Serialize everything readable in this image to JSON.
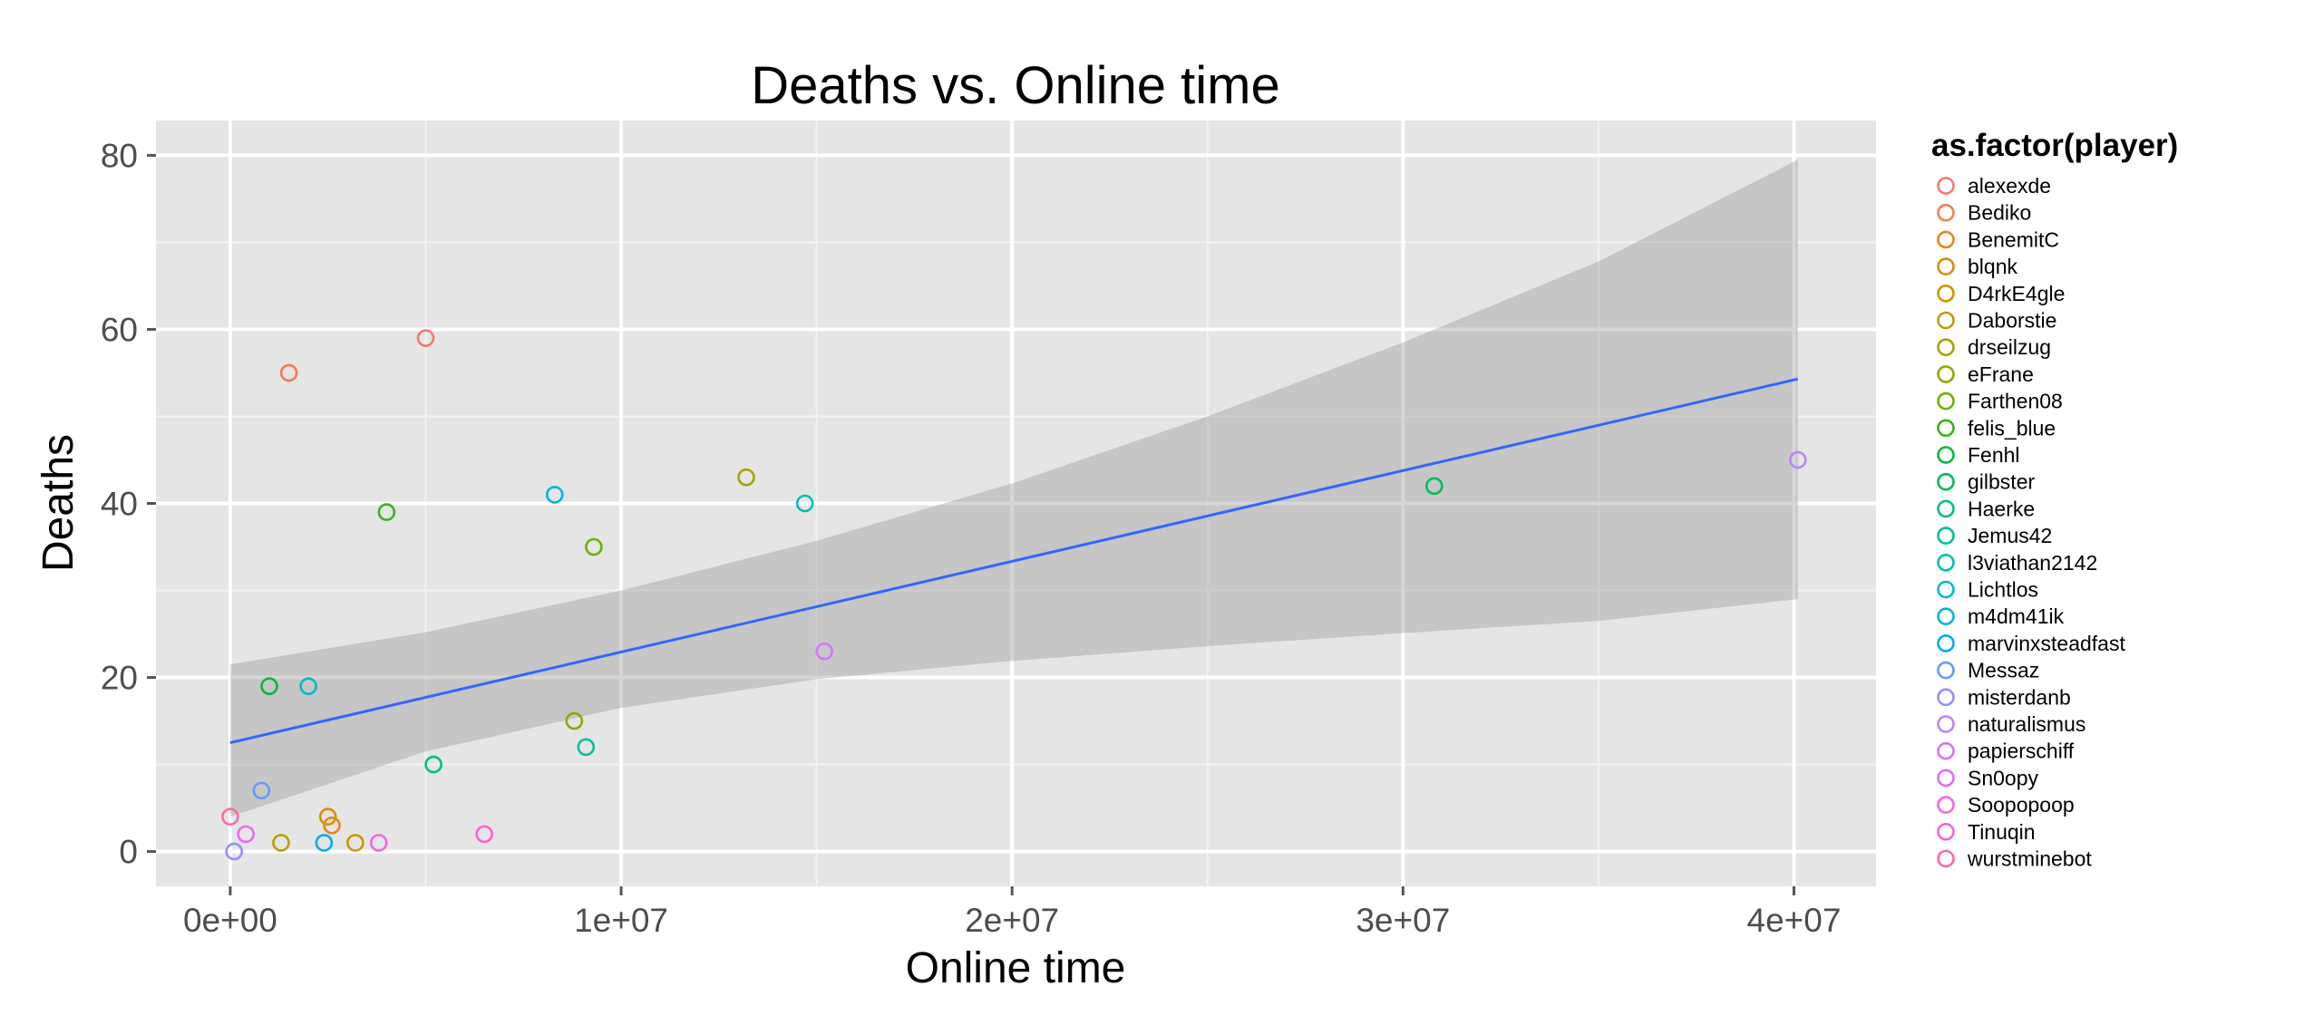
{
  "chart_data": {
    "type": "scatter",
    "title": "Deaths vs. Online time",
    "xlabel": "Online time",
    "ylabel": "Deaths",
    "xlim": [
      -1900000,
      42100000
    ],
    "ylim": [
      -4,
      84
    ],
    "x_ticks": [
      0,
      10000000,
      20000000,
      30000000,
      40000000
    ],
    "x_tick_labels": [
      "0e+00",
      "1e+07",
      "2e+07",
      "3e+07",
      "4e+07"
    ],
    "y_ticks": [
      0,
      20,
      40,
      60,
      80
    ],
    "y_tick_labels": [
      "0",
      "20",
      "40",
      "60",
      "80"
    ],
    "grid": true,
    "legend": {
      "title": "as.factor(player)",
      "position": "right"
    },
    "series": [
      {
        "name": "alexexde",
        "color": "#F8766D",
        "points": [
          [
            5000000,
            59
          ]
        ]
      },
      {
        "name": "Bediko",
        "color": "#F17D50",
        "points": [
          [
            1500000,
            55
          ]
        ]
      },
      {
        "name": "BenemitC",
        "color": "#E7851E",
        "points": [
          [
            2600000,
            3
          ]
        ]
      },
      {
        "name": "blqnk",
        "color": "#DA8E00",
        "points": [
          [
            2500000,
            4
          ]
        ]
      },
      {
        "name": "D4rkE4gle",
        "color": "#CB9600",
        "points": [
          [
            3200000,
            1
          ]
        ]
      },
      {
        "name": "Daborstie",
        "color": "#B99E00",
        "points": [
          [
            1300000,
            1
          ]
        ]
      },
      {
        "name": "drseilzug",
        "color": "#A4A500",
        "points": [
          [
            13200000,
            43
          ]
        ]
      },
      {
        "name": "eFrane",
        "color": "#8BAB00",
        "points": [
          [
            8800000,
            15
          ]
        ]
      },
      {
        "name": "Farthen08",
        "color": "#6BB100",
        "points": [
          [
            9300000,
            35
          ]
        ]
      },
      {
        "name": "felis_blue",
        "color": "#35B51C",
        "points": [
          [
            4000000,
            39
          ]
        ]
      },
      {
        "name": "Fenhl",
        "color": "#00BA38",
        "points": [
          [
            1000000,
            19
          ]
        ]
      },
      {
        "name": "gilbster",
        "color": "#00BC5A",
        "points": [
          [
            30800000,
            42
          ]
        ]
      },
      {
        "name": "Haerke",
        "color": "#00BF7A",
        "points": [
          [
            5200000,
            10
          ]
        ]
      },
      {
        "name": "Jemus42",
        "color": "#00C096",
        "points": [
          [
            9100000,
            12
          ]
        ]
      },
      {
        "name": "l3viathan2142",
        "color": "#00BFB0",
        "points": [
          [
            14700000,
            40
          ]
        ]
      },
      {
        "name": "Lichtlos",
        "color": "#00BBC8",
        "points": [
          [
            2000000,
            19
          ]
        ]
      },
      {
        "name": "m4dm41ik",
        "color": "#00B4DE",
        "points": [
          [
            8300000,
            41
          ]
        ]
      },
      {
        "name": "marvinxsteadfast",
        "color": "#00A9F3",
        "points": [
          [
            2400000,
            1
          ]
        ]
      },
      {
        "name": "Messaz",
        "color": "#619CFF",
        "points": [
          [
            800000,
            7
          ]
        ]
      },
      {
        "name": "misterdanb",
        "color": "#9590FF",
        "points": [
          [
            100000,
            0
          ]
        ]
      },
      {
        "name": "naturalismus",
        "color": "#B983FF",
        "points": [
          [
            40100000,
            45
          ]
        ]
      },
      {
        "name": "papierschiff",
        "color": "#D575FE",
        "points": [
          [
            15200000,
            23
          ]
        ]
      },
      {
        "name": "Sn0opy",
        "color": "#E76BF3",
        "points": [
          [
            400000,
            2
          ]
        ]
      },
      {
        "name": "Soopopoop",
        "color": "#F564E3",
        "points": [
          [
            3800000,
            1
          ]
        ]
      },
      {
        "name": "Tinuqin",
        "color": "#FD61D1",
        "points": [
          [
            6500000,
            2
          ]
        ]
      },
      {
        "name": "wurstminebot",
        "color": "#FF67A4",
        "points": [
          [
            0,
            4
          ]
        ]
      }
    ],
    "trend_line": {
      "method": "lm",
      "color": "#3366FF",
      "start": [
        0,
        12.5
      ],
      "end": [
        40100000,
        54.3
      ],
      "confidence_band": {
        "color": "#999999",
        "x": [
          0,
          5000000,
          10000000,
          15000000,
          20000000,
          25000000,
          30000000,
          35000000,
          40100000
        ],
        "upper": [
          21.5,
          25.2,
          30,
          35.7,
          42.3,
          50,
          58.5,
          67.8,
          79.5
        ],
        "lower": [
          4,
          11.5,
          16.5,
          19.8,
          21.9,
          23.6,
          25.1,
          26.5,
          29
        ]
      }
    }
  }
}
